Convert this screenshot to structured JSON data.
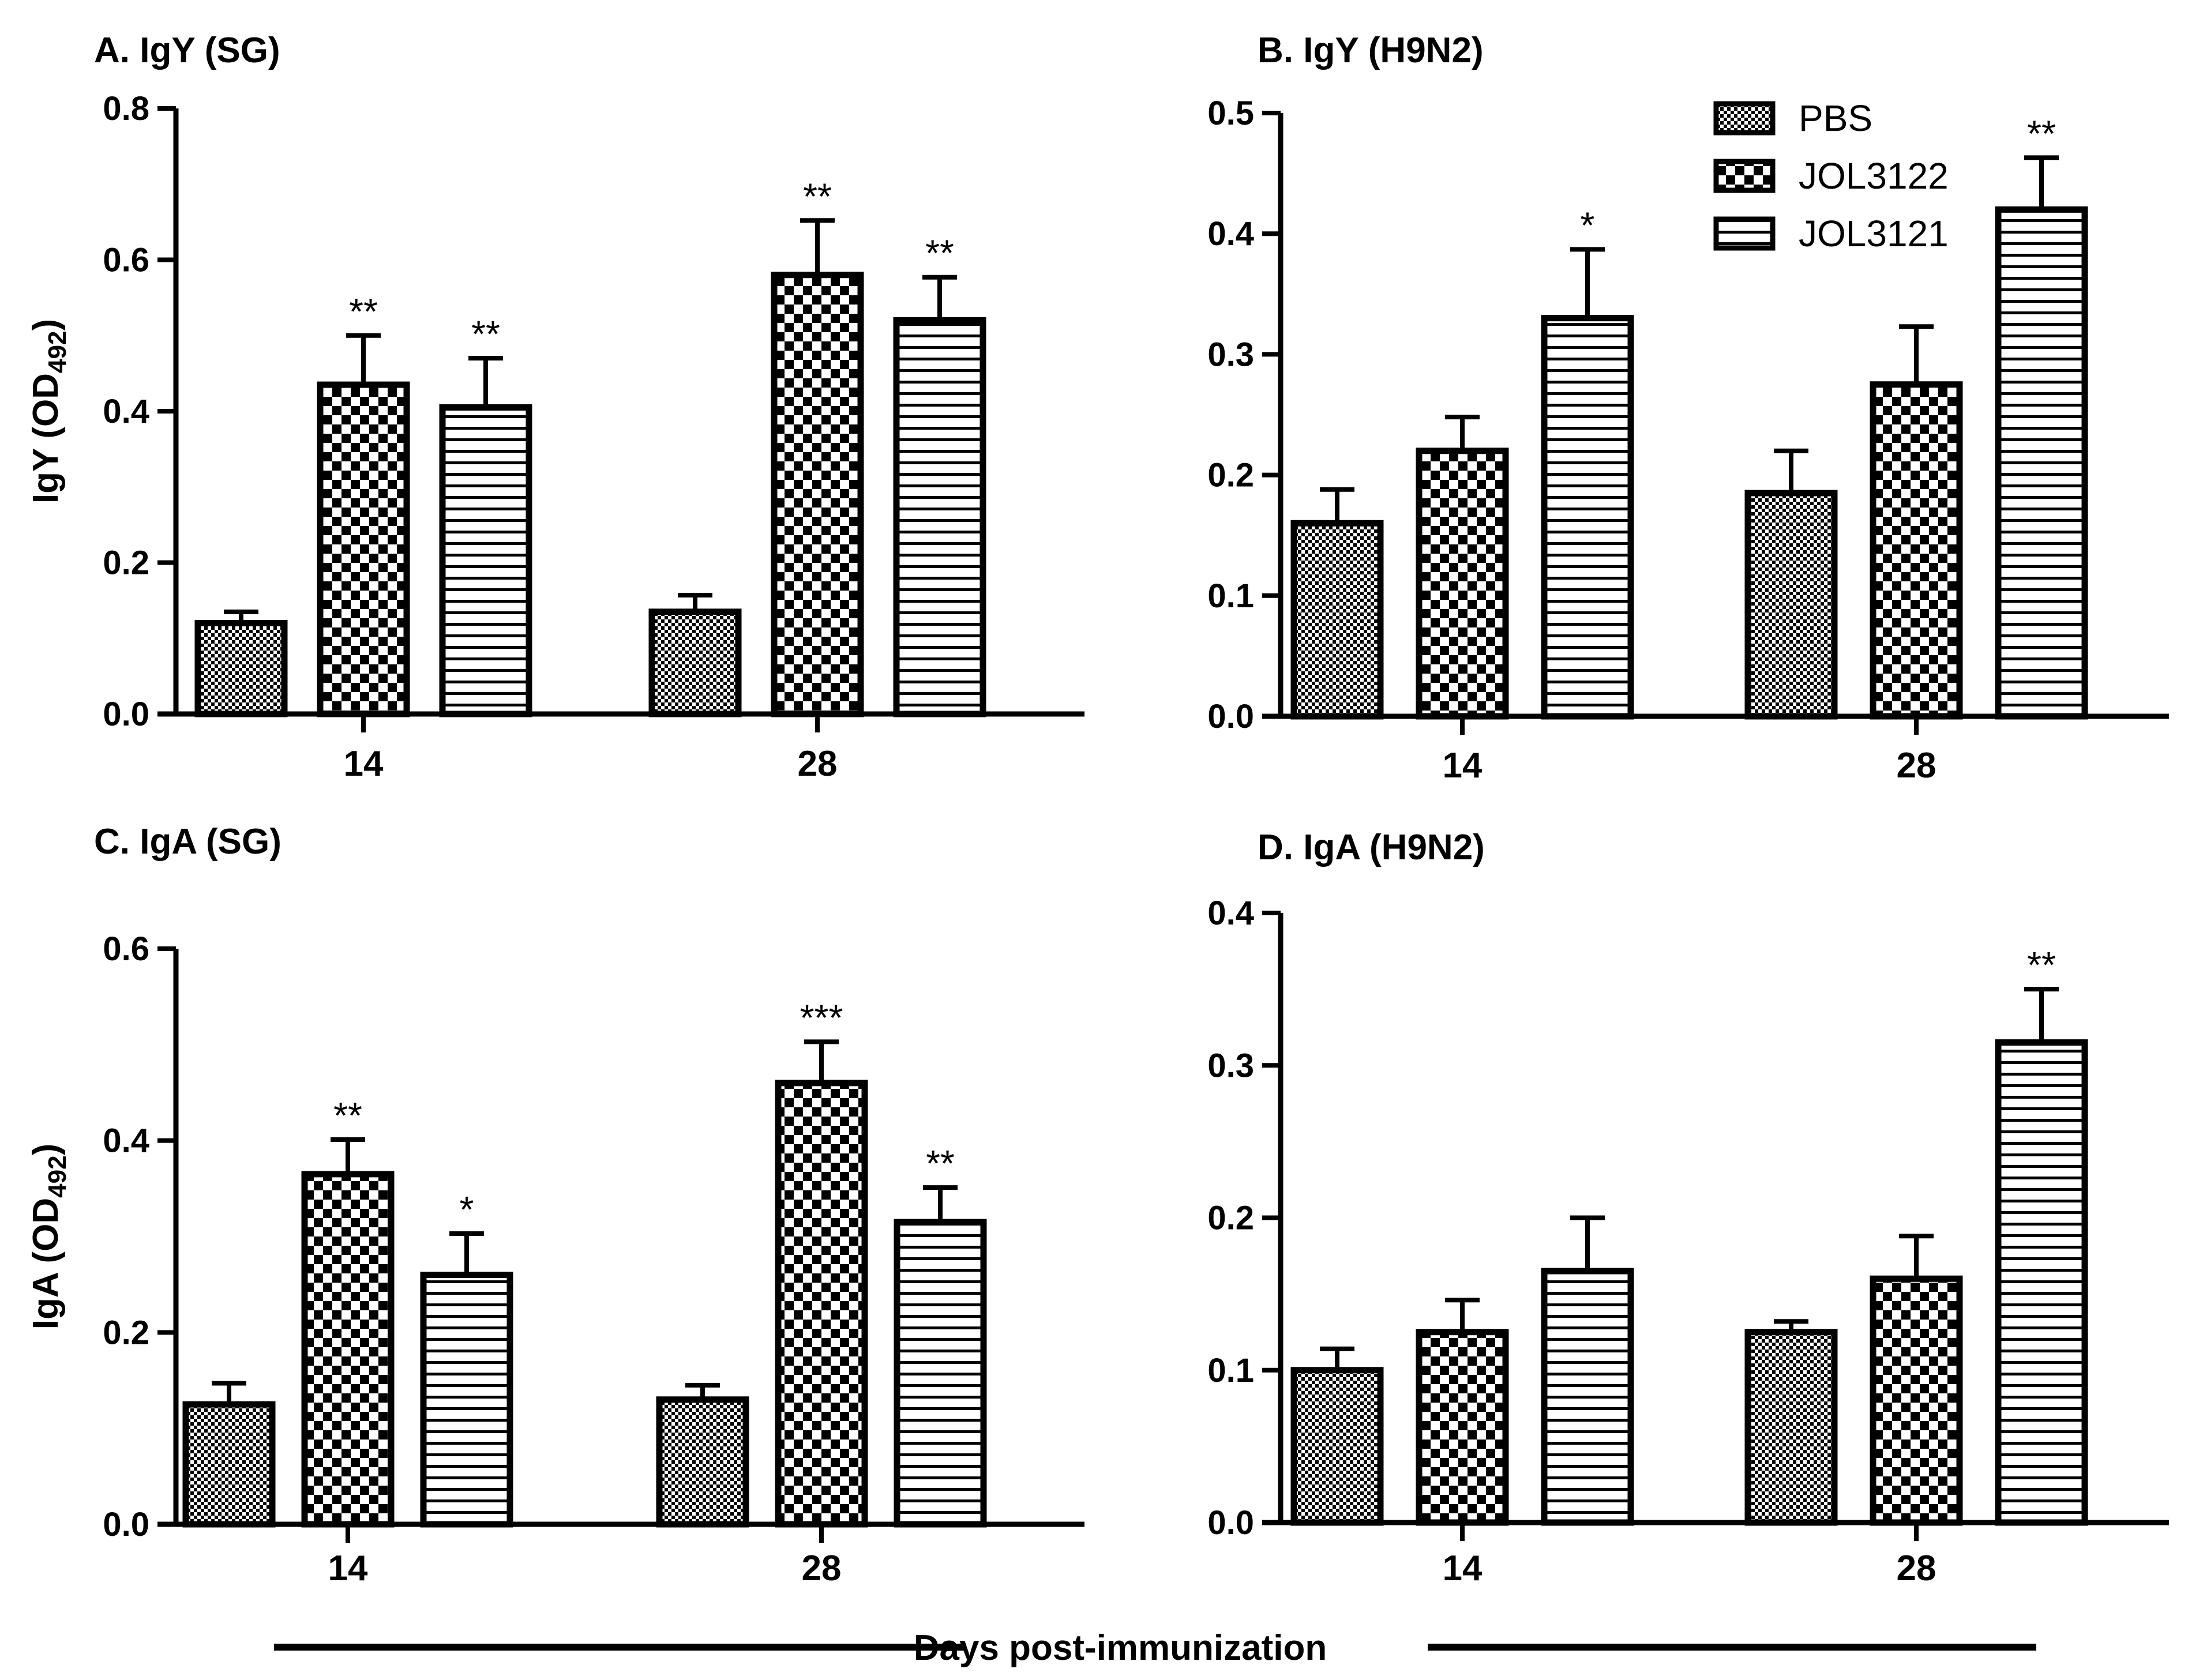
{
  "figure": {
    "xlabel": "Days post-immunization",
    "legend": [
      {
        "label": "PBS",
        "pattern": "fine-checker"
      },
      {
        "label": "JOL3122",
        "pattern": "coarse-checker"
      },
      {
        "label": "JOL3121",
        "pattern": "horizontal-lines"
      }
    ],
    "colors": {
      "ink": "#000000",
      "background": "#ffffff"
    }
  },
  "chart_data": [
    {
      "type": "bar",
      "title": "A. IgY (SG)",
      "ylabel": "IgY (OD",
      "ylabel_sub": "492",
      "ylabel_close": ")",
      "ylim": [
        0,
        0.8
      ],
      "yticks": [
        0.0,
        0.2,
        0.4,
        0.6,
        0.8
      ],
      "tick_labels": [
        "0.0",
        "0.2",
        "0.4",
        "0.6",
        "0.8"
      ],
      "categories": [
        "14",
        "28"
      ],
      "series": [
        {
          "name": "PBS",
          "values": [
            0.12,
            0.135
          ],
          "errors": [
            0.015,
            0.022
          ],
          "sig": [
            "",
            ""
          ]
        },
        {
          "name": "JOL3122",
          "values": [
            0.435,
            0.58
          ],
          "errors": [
            0.065,
            0.072
          ],
          "sig": [
            "**",
            "**"
          ]
        },
        {
          "name": "JOL3121",
          "values": [
            0.405,
            0.52
          ],
          "errors": [
            0.065,
            0.057
          ],
          "sig": [
            "**",
            "**"
          ]
        }
      ]
    },
    {
      "type": "bar",
      "title": "B. IgY (H9N2)",
      "ylabel": "",
      "ylim": [
        0,
        0.5
      ],
      "yticks": [
        0.0,
        0.1,
        0.2,
        0.3,
        0.4,
        0.5
      ],
      "tick_labels": [
        "0.0",
        "0.1",
        "0.2",
        "0.3",
        "0.4",
        "0.5"
      ],
      "categories": [
        "14",
        "28"
      ],
      "series": [
        {
          "name": "PBS",
          "values": [
            0.16,
            0.185
          ],
          "errors": [
            0.028,
            0.035
          ],
          "sig": [
            "",
            ""
          ]
        },
        {
          "name": "JOL3122",
          "values": [
            0.22,
            0.275
          ],
          "errors": [
            0.028,
            0.048
          ],
          "sig": [
            "",
            ""
          ]
        },
        {
          "name": "JOL3121",
          "values": [
            0.33,
            0.42
          ],
          "errors": [
            0.057,
            0.043
          ],
          "sig": [
            "*",
            "**"
          ]
        }
      ]
    },
    {
      "type": "bar",
      "title": "C. IgA (SG)",
      "ylabel": "IgA (OD",
      "ylabel_sub": "492",
      "ylabel_close": ")",
      "ylim": [
        0,
        0.6
      ],
      "yticks": [
        0.0,
        0.2,
        0.4,
        0.6
      ],
      "tick_labels": [
        "0.0",
        "0.2",
        "0.4",
        "0.6"
      ],
      "categories": [
        "14",
        "28"
      ],
      "series": [
        {
          "name": "PBS",
          "values": [
            0.125,
            0.13
          ],
          "errors": [
            0.022,
            0.015
          ],
          "sig": [
            "",
            ""
          ]
        },
        {
          "name": "JOL3122",
          "values": [
            0.365,
            0.46
          ],
          "errors": [
            0.036,
            0.043
          ],
          "sig": [
            "**",
            "***"
          ]
        },
        {
          "name": "JOL3121",
          "values": [
            0.26,
            0.315
          ],
          "errors": [
            0.043,
            0.036
          ],
          "sig": [
            "*",
            "**"
          ]
        }
      ]
    },
    {
      "type": "bar",
      "title": "D. IgA (H9N2)",
      "ylabel": "",
      "ylim": [
        0,
        0.4
      ],
      "yticks": [
        0.0,
        0.1,
        0.2,
        0.3,
        0.4
      ],
      "tick_labels": [
        "0.0",
        "0.1",
        "0.2",
        "0.3",
        "0.4"
      ],
      "categories": [
        "14",
        "28"
      ],
      "series": [
        {
          "name": "PBS",
          "values": [
            0.1,
            0.125
          ],
          "errors": [
            0.014,
            0.007
          ],
          "sig": [
            "",
            ""
          ]
        },
        {
          "name": "JOL3122",
          "values": [
            0.125,
            0.16
          ],
          "errors": [
            0.021,
            0.028
          ],
          "sig": [
            "",
            ""
          ]
        },
        {
          "name": "JOL3121",
          "values": [
            0.165,
            0.315
          ],
          "errors": [
            0.035,
            0.035
          ],
          "sig": [
            "",
            "**"
          ]
        }
      ]
    }
  ]
}
